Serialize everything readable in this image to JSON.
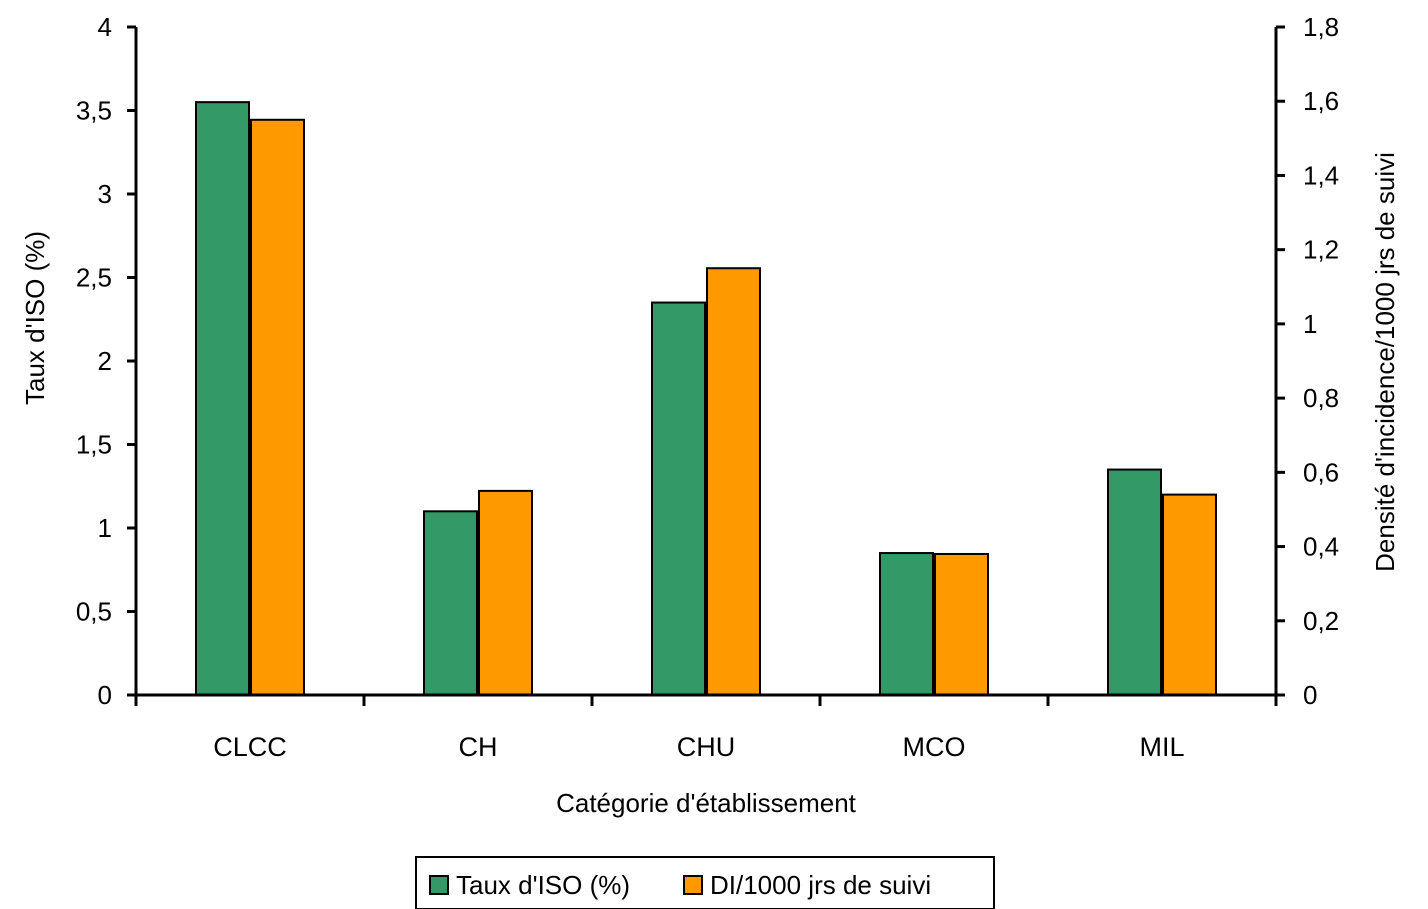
{
  "chart_data": {
    "type": "bar",
    "categories": [
      "CLCC",
      "CH",
      "CHU",
      "MCO",
      "MIL"
    ],
    "series": [
      {
        "name": "Taux d'ISO (%)",
        "axis": "left",
        "color": "#339966",
        "values": [
          3.55,
          1.1,
          2.35,
          0.85,
          1.35
        ]
      },
      {
        "name": "DI/1000 jrs de suivi",
        "axis": "right",
        "color": "#FF9900",
        "values": [
          1.55,
          0.55,
          1.15,
          0.38,
          0.54
        ]
      }
    ],
    "xlabel": "Catégorie d'établissement",
    "ylabel": "Taux d'ISO (%)",
    "y2label": "Densité d'incidence/1000 jrs de suivi",
    "ylim": [
      0,
      4
    ],
    "y2lim": [
      0,
      1.8
    ],
    "yticks": [
      "0",
      "0,5",
      "1",
      "1,5",
      "2",
      "2,5",
      "3",
      "3,5",
      "4"
    ],
    "y2ticks": [
      "0",
      "0,2",
      "0,4",
      "0,6",
      "0,8",
      "1",
      "1,2",
      "1,4",
      "1,6",
      "1,8"
    ],
    "grid": false,
    "legend": "bottom"
  }
}
